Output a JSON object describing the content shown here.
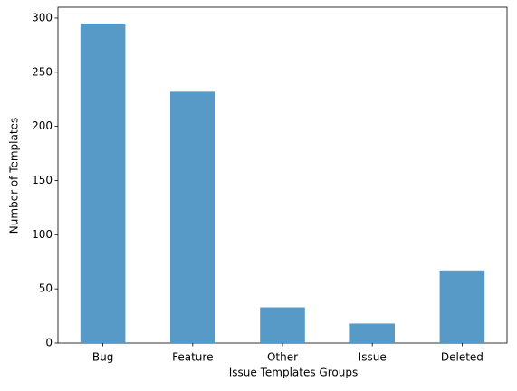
{
  "chart_data": {
    "type": "bar",
    "x_label": "Issue Templates Groups",
    "y_label": "Number of Templates",
    "categories": [
      "Bug",
      "Feature",
      "Other",
      "Issue",
      "Deleted"
    ],
    "values": [
      295,
      232,
      33,
      18,
      67
    ],
    "color": "#5799c7",
    "ylim": [
      0,
      310
    ],
    "yticks": [
      0,
      50,
      100,
      150,
      200,
      250,
      300
    ],
    "grid": false
  }
}
